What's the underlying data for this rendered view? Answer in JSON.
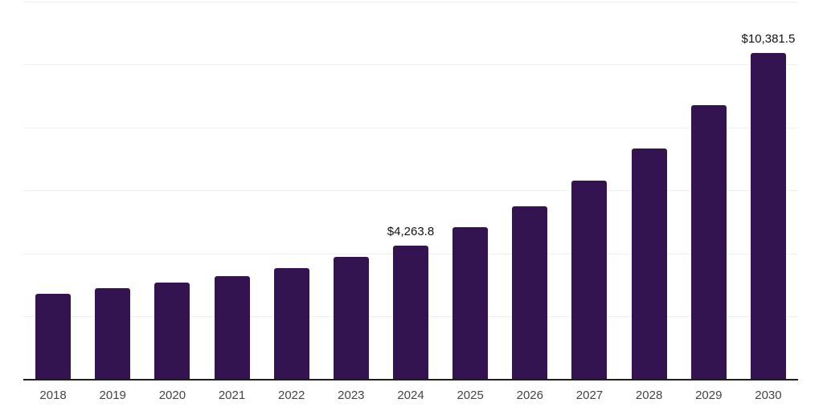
{
  "chart_data": {
    "type": "bar",
    "title": "",
    "xlabel": "",
    "ylabel": "",
    "categories": [
      "2018",
      "2019",
      "2020",
      "2021",
      "2022",
      "2023",
      "2024",
      "2025",
      "2026",
      "2027",
      "2028",
      "2029",
      "2030"
    ],
    "values": [
      2725,
      2905,
      3085,
      3290,
      3540,
      3900,
      4263.8,
      4850,
      5500,
      6320,
      7345,
      8715,
      10381.5
    ],
    "value_labels": {
      "2024": "$4,263.8",
      "2030": "$10,381.5"
    },
    "ylim": [
      0,
      12000
    ],
    "gridline_step": 2000,
    "grid": "horizontal",
    "legend": "none",
    "colors": {
      "bar": "#331450",
      "gridline": "#f0f0f0",
      "axis_line": "#1f1f1f",
      "x_label": "#444444",
      "value_label": "#111111",
      "background": "#ffffff"
    }
  }
}
